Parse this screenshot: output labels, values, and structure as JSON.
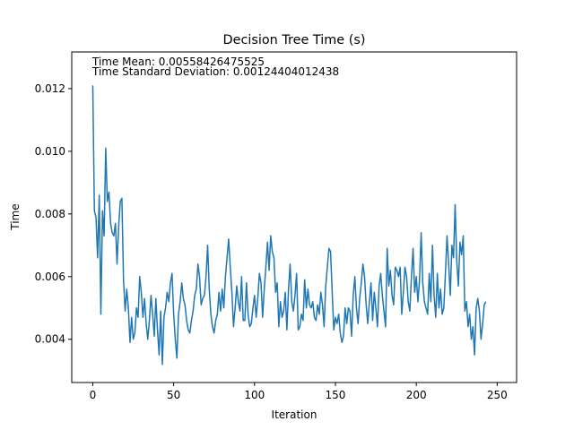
{
  "chart_data": {
    "type": "line",
    "title": "Decision Tree Time (s)",
    "xlabel": "Iteration",
    "ylabel": "Time",
    "xlim": [
      -13,
      262
    ],
    "ylim": [
      0.00262,
      0.01317
    ],
    "xticks": [
      0,
      50,
      100,
      150,
      200,
      250
    ],
    "yticks": [
      0.004,
      0.006,
      0.008,
      0.01,
      0.012
    ],
    "xtick_labels": [
      "0",
      "50",
      "100",
      "150",
      "200",
      "250"
    ],
    "ytick_labels": [
      "0.004",
      "0.006",
      "0.008",
      "0.010",
      "0.012"
    ],
    "grid": false,
    "annotations": [
      "Time Mean: 0.00558426475525",
      "Time Standard Deviation: 0.00124404012438"
    ],
    "series": [
      {
        "name": "Time",
        "color": "#1f77b4",
        "x_start": 0,
        "x_step": 1,
        "values": [
          0.0121,
          0.0081,
          0.0079,
          0.0066,
          0.0086,
          0.0048,
          0.0081,
          0.0073,
          0.0101,
          0.0084,
          0.0087,
          0.0077,
          0.0074,
          0.0073,
          0.0077,
          0.0064,
          0.0076,
          0.0084,
          0.0085,
          0.0059,
          0.0049,
          0.0056,
          0.005,
          0.0039,
          0.0047,
          0.004,
          0.0042,
          0.005,
          0.0047,
          0.006,
          0.0055,
          0.0047,
          0.0053,
          0.0045,
          0.004,
          0.0046,
          0.0054,
          0.0048,
          0.0041,
          0.0053,
          0.0043,
          0.0035,
          0.0049,
          0.0032,
          0.0047,
          0.005,
          0.0055,
          0.0052,
          0.0058,
          0.0061,
          0.0048,
          0.004,
          0.0034,
          0.0048,
          0.0052,
          0.0058,
          0.0053,
          0.0051,
          0.0046,
          0.0043,
          0.0042,
          0.0046,
          0.0049,
          0.0054,
          0.0056,
          0.0064,
          0.006,
          0.0051,
          0.0053,
          0.0054,
          0.006,
          0.007,
          0.0056,
          0.0048,
          0.0044,
          0.0042,
          0.0046,
          0.0048,
          0.0055,
          0.0049,
          0.0056,
          0.005,
          0.006,
          0.0066,
          0.0072,
          0.0063,
          0.0055,
          0.0044,
          0.005,
          0.0057,
          0.0052,
          0.0049,
          0.006,
          0.0046,
          0.0046,
          0.0058,
          0.0048,
          0.0044,
          0.0045,
          0.005,
          0.0054,
          0.0047,
          0.0053,
          0.0061,
          0.0058,
          0.0047,
          0.0056,
          0.0063,
          0.0071,
          0.0062,
          0.0073,
          0.0068,
          0.0066,
          0.0055,
          0.0058,
          0.0044,
          0.0052,
          0.0047,
          0.0049,
          0.0055,
          0.0043,
          0.0056,
          0.0064,
          0.0052,
          0.0049,
          0.0054,
          0.0061,
          0.0043,
          0.0044,
          0.0048,
          0.0046,
          0.0059,
          0.005,
          0.0056,
          0.0051,
          0.005,
          0.0052,
          0.0047,
          0.0046,
          0.0051,
          0.0048,
          0.0055,
          0.0051,
          0.0044,
          0.0057,
          0.0063,
          0.0069,
          0.0068,
          0.0055,
          0.0043,
          0.0047,
          0.0045,
          0.0048,
          0.0042,
          0.0039,
          0.0041,
          0.005,
          0.0045,
          0.005,
          0.0049,
          0.0041,
          0.0054,
          0.006,
          0.005,
          0.0045,
          0.0053,
          0.0058,
          0.0064,
          0.006,
          0.0051,
          0.0045,
          0.0052,
          0.0058,
          0.0046,
          0.0055,
          0.005,
          0.0044,
          0.0057,
          0.0061,
          0.0054,
          0.0049,
          0.0044,
          0.0069,
          0.0057,
          0.0062,
          0.0054,
          0.0051,
          0.0063,
          0.0062,
          0.006,
          0.0063,
          0.0048,
          0.0055,
          0.0063,
          0.006,
          0.0052,
          0.0049,
          0.006,
          0.0069,
          0.0055,
          0.006,
          0.0052,
          0.0059,
          0.0074,
          0.0058,
          0.0052,
          0.005,
          0.0048,
          0.0061,
          0.0052,
          0.007,
          0.0054,
          0.0047,
          0.0061,
          0.005,
          0.0056,
          0.0048,
          0.005,
          0.0061,
          0.0073,
          0.0064,
          0.0054,
          0.007,
          0.0066,
          0.0083,
          0.0065,
          0.0057,
          0.0071,
          0.0067,
          0.0073,
          0.0049,
          0.0052,
          0.0044,
          0.0048,
          0.004,
          0.0044,
          0.0035,
          0.005,
          0.0053,
          0.0049,
          0.004,
          0.0045,
          0.0051,
          0.0052
        ]
      }
    ]
  }
}
